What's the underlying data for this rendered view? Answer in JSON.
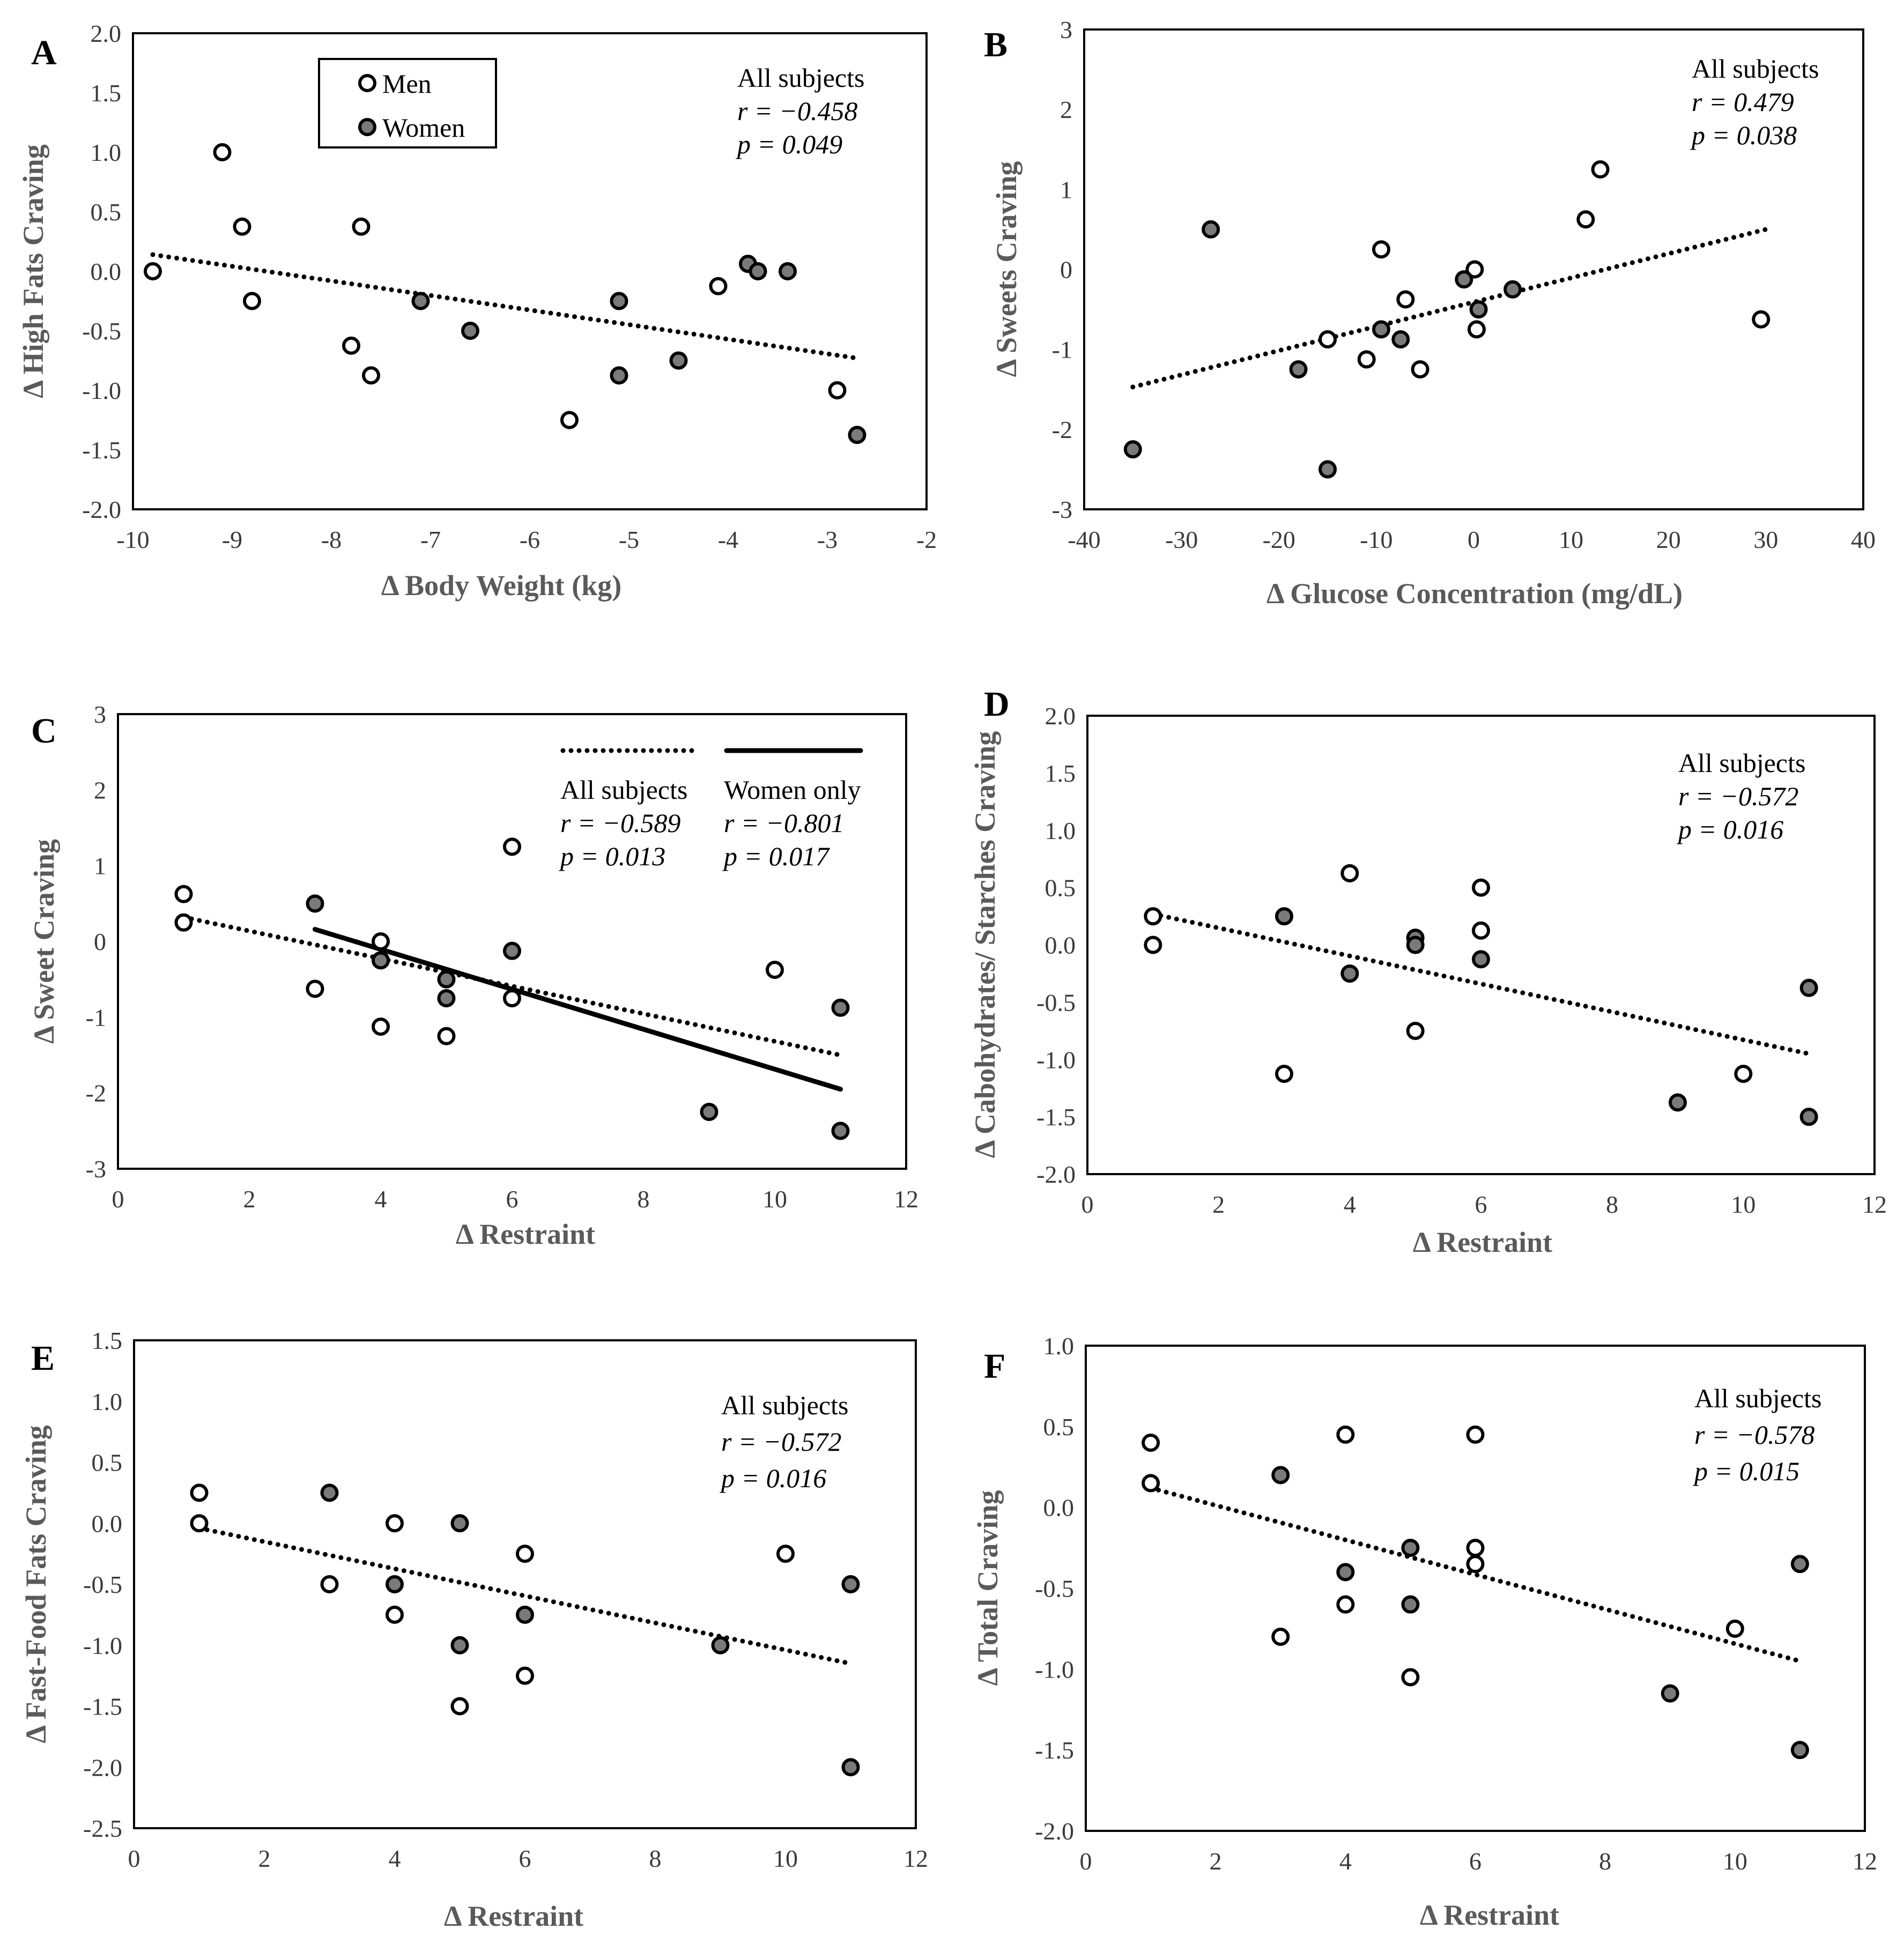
{
  "chart_data": [
    {
      "panel": "A",
      "type": "scatter",
      "xlabel": "Δ Body Weight (kg)",
      "ylabel": "Δ High Fats Craving",
      "xlim": [
        -10,
        -2
      ],
      "ylim": [
        -2,
        2
      ],
      "xticks": [
        -10,
        -9,
        -8,
        -7,
        -6,
        -5,
        -4,
        -3,
        -2
      ],
      "yticks": [
        2,
        1.5,
        1,
        0.5,
        0,
        -0.5,
        -1,
        -1.5,
        -2
      ],
      "yfmt": 1,
      "legend": [
        {
          "label": "Men",
          "marker": "open"
        },
        {
          "label": "Women",
          "marker": "filled"
        }
      ],
      "annotations": [
        {
          "text": "All subjects",
          "italic": false
        },
        {
          "text": "r = −0.458",
          "italic": true
        },
        {
          "text": "p = 0.049",
          "italic": true
        }
      ],
      "series": [
        {
          "name": "Men",
          "points": [
            [
              -9.8,
              0
            ],
            [
              -9.1,
              1
            ],
            [
              -8.9,
              0.375
            ],
            [
              -8.8,
              -0.25
            ],
            [
              -7.8,
              -0.625
            ],
            [
              -7.7,
              0.375
            ],
            [
              -7.6,
              -0.875
            ],
            [
              -5.6,
              -1.25
            ],
            [
              -4.1,
              -0.125
            ],
            [
              -2.9,
              -1
            ]
          ]
        },
        {
          "name": "Women",
          "points": [
            [
              -7.1,
              -0.25
            ],
            [
              -6.6,
              -0.5
            ],
            [
              -5.1,
              -0.25
            ],
            [
              -5.1,
              -0.875
            ],
            [
              -4.5,
              -0.75
            ],
            [
              -3.8,
              0.0625
            ],
            [
              -3.7,
              0
            ],
            [
              -3.4,
              0
            ],
            [
              -2.7,
              -1.375
            ]
          ]
        }
      ],
      "trendlines": [
        {
          "name": "All subjects",
          "style": "dotted",
          "x": [
            -9.8,
            -2.7
          ],
          "y": [
            0.14,
            -0.73
          ]
        }
      ]
    },
    {
      "panel": "B",
      "type": "scatter",
      "xlabel": "Δ  Glucose Concentration (mg/dL)",
      "ylabel": "Δ Sweets Craving",
      "xlim": [
        -40,
        40
      ],
      "ylim": [
        -3,
        3
      ],
      "xticks": [
        -40,
        -30,
        -20,
        -10,
        0,
        10,
        20,
        30,
        40
      ],
      "yticks": [
        3,
        2,
        1,
        0,
        -1,
        -2,
        -3
      ],
      "yfmt": 0,
      "annotations": [
        {
          "text": "All subjects",
          "italic": false
        },
        {
          "text": "r = 0.479",
          "italic": true
        },
        {
          "text": "p = 0.038",
          "italic": true
        }
      ],
      "series": [
        {
          "name": "Men",
          "points": [
            [
              -15,
              -0.875
            ],
            [
              -11,
              -1.125
            ],
            [
              -9.5,
              0.25
            ],
            [
              -7,
              -0.375
            ],
            [
              -5.5,
              -1.25
            ],
            [
              0.1,
              0
            ],
            [
              0.3,
              -0.75
            ],
            [
              11.5,
              0.625
            ],
            [
              13,
              1.25
            ],
            [
              29.5,
              -0.625
            ]
          ]
        },
        {
          "name": "Women",
          "points": [
            [
              -35,
              -2.25
            ],
            [
              -27,
              0.5
            ],
            [
              -18,
              -1.25
            ],
            [
              -15,
              -2.5
            ],
            [
              -9.5,
              -0.75
            ],
            [
              -7.5,
              -0.875
            ],
            [
              -1,
              -0.125
            ],
            [
              0.5,
              -0.5
            ],
            [
              4,
              -0.25
            ]
          ]
        }
      ],
      "trendlines": [
        {
          "name": "All subjects",
          "style": "dotted",
          "x": [
            -35,
            30
          ],
          "y": [
            -1.47,
            0.5
          ]
        }
      ]
    },
    {
      "panel": "C",
      "type": "scatter",
      "xlabel": "Δ Restraint",
      "ylabel": "Δ Sweet Craving",
      "xlim": [
        0,
        12
      ],
      "ylim": [
        -3,
        3
      ],
      "xticks": [
        0,
        2,
        4,
        6,
        8,
        10,
        12
      ],
      "yticks": [
        3,
        2,
        1,
        0,
        -1,
        -2,
        -3
      ],
      "yfmt": 0,
      "legend_lines": [
        {
          "label": "All subjects",
          "style": "dotted"
        },
        {
          "label": "Women only",
          "style": "solid"
        }
      ],
      "annotations": [
        {
          "text": "r = −0.589",
          "italic": true
        },
        {
          "text": "p = 0.013",
          "italic": true
        },
        {
          "text": "r = −0.801",
          "italic": true
        },
        {
          "text": "p = 0.017",
          "italic": true
        }
      ],
      "series": [
        {
          "name": "Men",
          "points": [
            [
              1,
              0.625
            ],
            [
              1,
              0.25
            ],
            [
              3,
              -0.625
            ],
            [
              4,
              0
            ],
            [
              4,
              -1.125
            ],
            [
              5,
              -1.25
            ],
            [
              6,
              1.25
            ],
            [
              6,
              -0.75
            ],
            [
              10,
              -0.375
            ]
          ]
        },
        {
          "name": "Women",
          "points": [
            [
              3,
              0.5
            ],
            [
              4,
              -0.25
            ],
            [
              5,
              -0.5
            ],
            [
              5,
              -0.75
            ],
            [
              6,
              -0.125
            ],
            [
              9,
              -2.25
            ],
            [
              11,
              -0.875
            ],
            [
              11,
              -2.5
            ]
          ]
        }
      ],
      "trendlines": [
        {
          "name": "All subjects",
          "style": "dotted",
          "x": [
            1,
            11
          ],
          "y": [
            0.32,
            -1.5
          ]
        },
        {
          "name": "Women only",
          "style": "solid",
          "x": [
            3,
            11
          ],
          "y": [
            0.16,
            -1.95
          ]
        }
      ]
    },
    {
      "panel": "D",
      "type": "scatter",
      "xlabel": "Δ Restraint",
      "ylabel": "Δ Cabohydrates/ Starches Craving",
      "xlim": [
        0,
        12
      ],
      "ylim": [
        -2,
        2
      ],
      "xticks": [
        0,
        2,
        4,
        6,
        8,
        10,
        12
      ],
      "yticks": [
        2,
        1.5,
        1,
        0.5,
        0,
        -0.5,
        -1,
        -1.5,
        -2
      ],
      "yfmt": 1,
      "annotations": [
        {
          "text": "All subjects",
          "italic": false
        },
        {
          "text": "r = −0.572",
          "italic": true
        },
        {
          "text": "p = 0.016",
          "italic": true
        }
      ],
      "series": [
        {
          "name": "Men",
          "points": [
            [
              1,
              0.25
            ],
            [
              1,
              0
            ],
            [
              3,
              -1.125
            ],
            [
              4,
              0.625
            ],
            [
              5,
              -0.75
            ],
            [
              6,
              0.5
            ],
            [
              6,
              0.125
            ],
            [
              10,
              -1.125
            ]
          ]
        },
        {
          "name": "Women",
          "points": [
            [
              3,
              0.25
            ],
            [
              4,
              -0.25
            ],
            [
              5,
              0.0625
            ],
            [
              5,
              0
            ],
            [
              6,
              -0.125
            ],
            [
              9,
              -1.375
            ],
            [
              11,
              -0.375
            ],
            [
              11,
              -1.5
            ]
          ]
        }
      ],
      "trendlines": [
        {
          "name": "All subjects",
          "style": "dotted",
          "x": [
            1,
            11
          ],
          "y": [
            0.27,
            -0.95
          ]
        }
      ]
    },
    {
      "panel": "E",
      "type": "scatter",
      "xlabel": "Δ Restraint",
      "ylabel": "Δ Fast-Food  Fats Craving",
      "xlim": [
        0,
        12
      ],
      "ylim": [
        -2.5,
        1.5
      ],
      "xticks": [
        0,
        2,
        4,
        6,
        8,
        10,
        12
      ],
      "yticks": [
        1.5,
        1,
        0.5,
        0,
        -0.5,
        -1,
        -1.5,
        -2,
        -2.5
      ],
      "yfmt": 1,
      "annotations": [
        {
          "text": "All subjects",
          "italic": false
        },
        {
          "text": "r = −0.572",
          "italic": true
        },
        {
          "text": "p = 0.016",
          "italic": true
        }
      ],
      "series": [
        {
          "name": "Men",
          "points": [
            [
              1,
              0.25
            ],
            [
              1,
              0
            ],
            [
              3,
              -0.5
            ],
            [
              4,
              0
            ],
            [
              4,
              -0.75
            ],
            [
              5,
              -1.5
            ],
            [
              6,
              -0.25
            ],
            [
              6,
              -1.25
            ],
            [
              10,
              -0.25
            ]
          ]
        },
        {
          "name": "Women",
          "points": [
            [
              3,
              0.25
            ],
            [
              4,
              -0.5
            ],
            [
              5,
              0
            ],
            [
              5,
              -1
            ],
            [
              6,
              -0.75
            ],
            [
              9,
              -1
            ],
            [
              11,
              -0.5
            ],
            [
              11,
              -2
            ]
          ]
        }
      ],
      "trendlines": [
        {
          "name": "All subjects",
          "style": "dotted",
          "x": [
            1,
            11
          ],
          "y": [
            -0.04,
            -1.15
          ]
        }
      ]
    },
    {
      "panel": "F",
      "type": "scatter",
      "xlabel": "Δ Restraint",
      "ylabel": "Δ Total Craving",
      "xlim": [
        0,
        12
      ],
      "ylim": [
        -2,
        1
      ],
      "xticks": [
        0,
        2,
        4,
        6,
        8,
        10,
        12
      ],
      "yticks": [
        1,
        0.5,
        0,
        -0.5,
        -1,
        -1.5,
        -2
      ],
      "yfmt": 1,
      "annotations": [
        {
          "text": "All subjects",
          "italic": false
        },
        {
          "text": "r = −0.578",
          "italic": true
        },
        {
          "text": "p = 0.015",
          "italic": true
        }
      ],
      "series": [
        {
          "name": "Men",
          "points": [
            [
              1,
              0.4
            ],
            [
              1,
              0.15
            ],
            [
              3,
              -0.8
            ],
            [
              4,
              0.45
            ],
            [
              4,
              -0.6
            ],
            [
              5,
              -1.05
            ],
            [
              6,
              0.45
            ],
            [
              6,
              -0.25
            ],
            [
              6,
              -0.35
            ],
            [
              10,
              -0.75
            ]
          ]
        },
        {
          "name": "Women",
          "points": [
            [
              3,
              0.2
            ],
            [
              4,
              -0.4
            ],
            [
              5,
              -0.25
            ],
            [
              5,
              -0.6
            ],
            [
              9,
              -1.15
            ],
            [
              11,
              -0.35
            ],
            [
              11,
              -1.5
            ]
          ]
        }
      ],
      "trendlines": [
        {
          "name": "All subjects",
          "style": "dotted",
          "x": [
            1,
            11
          ],
          "y": [
            0.12,
            -0.95
          ]
        }
      ]
    }
  ]
}
